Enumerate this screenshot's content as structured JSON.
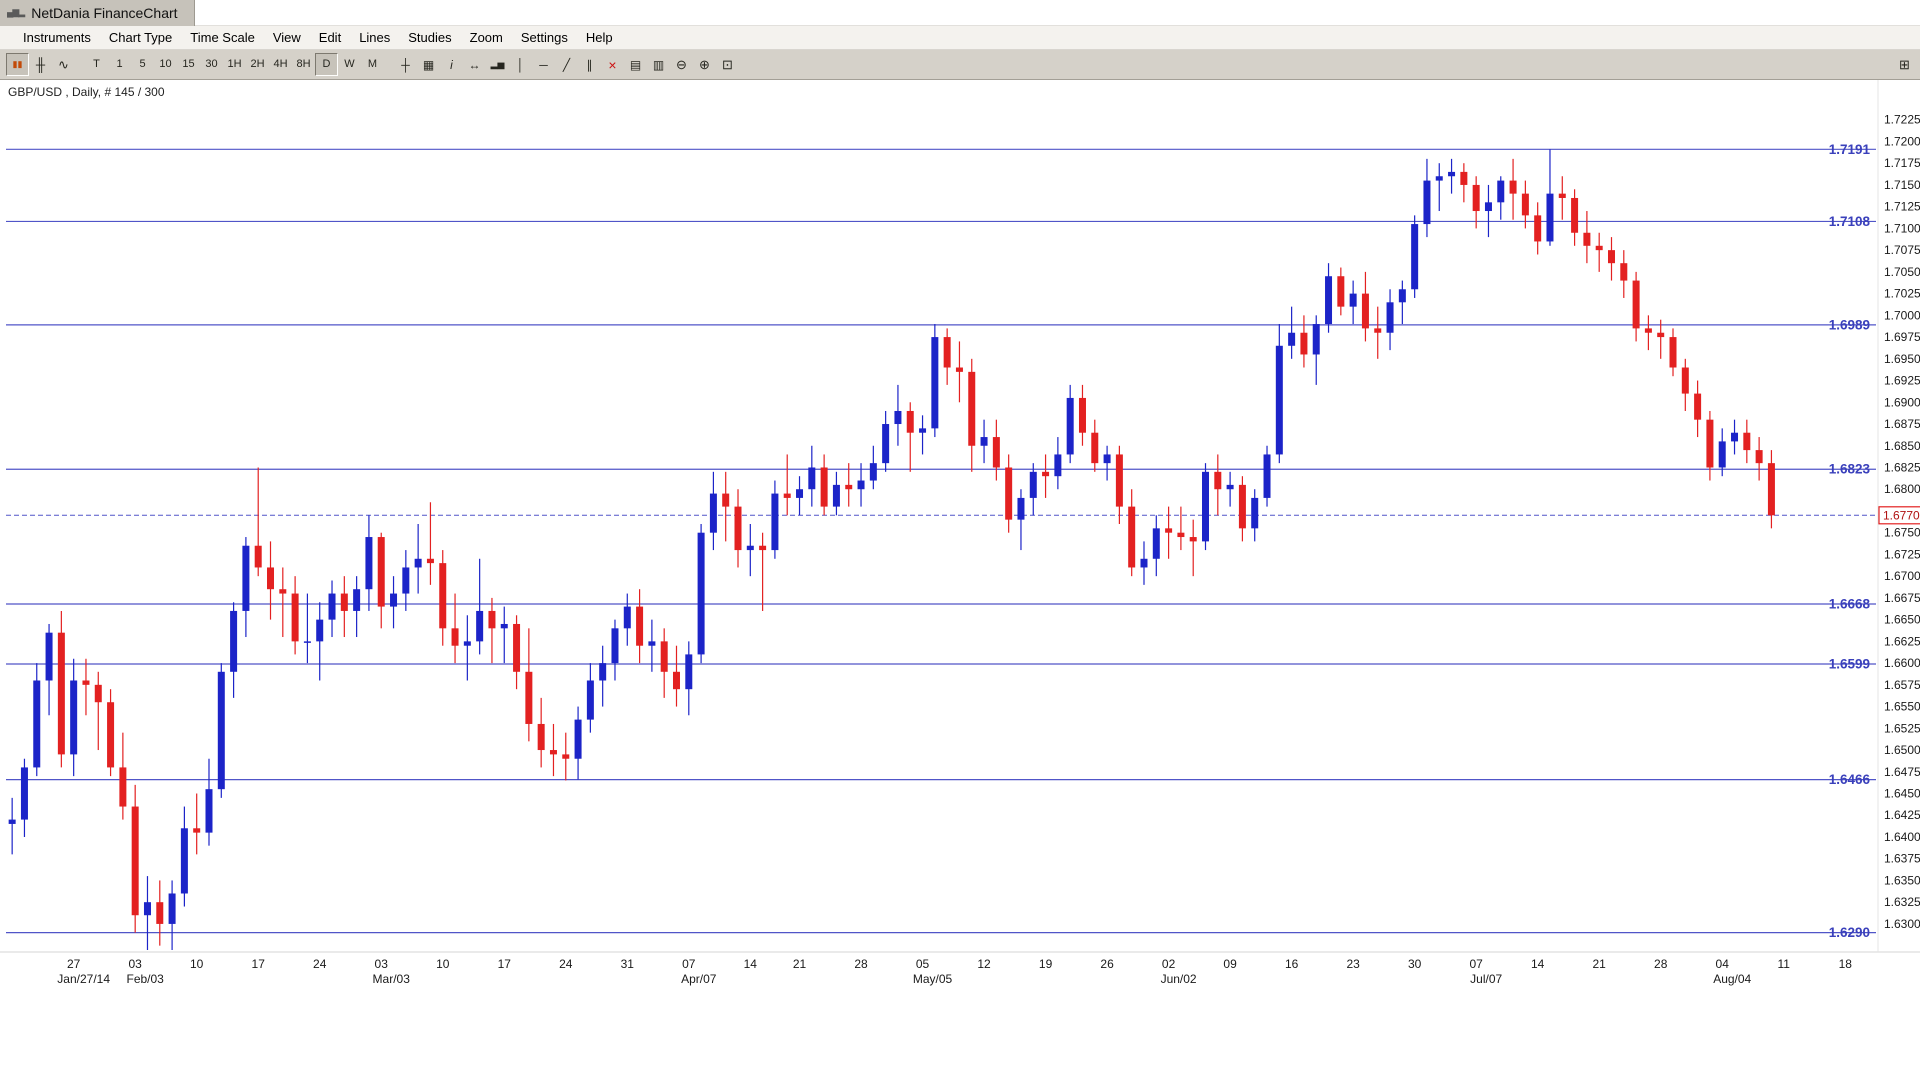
{
  "window": {
    "title": "NetDania FinanceChart",
    "app_icon_glyph": "▄▆▂"
  },
  "menu": {
    "items": [
      "Instruments",
      "Chart Type",
      "Time Scale",
      "View",
      "Edit",
      "Lines",
      "Studies",
      "Zoom",
      "Settings",
      "Help"
    ]
  },
  "toolbar": {
    "chart_type_buttons": [
      {
        "name": "candlestick-chart-button",
        "glyph": "▮▮",
        "size": 9,
        "color": "#c24a08",
        "pressed": true
      },
      {
        "name": "bar-chart-button",
        "glyph": "╫",
        "size": 13
      },
      {
        "name": "line-chart-button",
        "glyph": "∿",
        "size": 13
      }
    ],
    "timeframe_buttons": [
      {
        "name": "timeframe-tick-button",
        "label": "T"
      },
      {
        "name": "timeframe-1m-button",
        "label": "1"
      },
      {
        "name": "timeframe-5m-button",
        "label": "5"
      },
      {
        "name": "timeframe-10m-button",
        "label": "10"
      },
      {
        "name": "timeframe-15m-button",
        "label": "15"
      },
      {
        "name": "timeframe-30m-button",
        "label": "30"
      },
      {
        "name": "timeframe-1h-button",
        "label": "1H"
      },
      {
        "name": "timeframe-2h-button",
        "label": "2H"
      },
      {
        "name": "timeframe-4h-button",
        "label": "4H"
      },
      {
        "name": "timeframe-8h-button",
        "label": "8H"
      },
      {
        "name": "timeframe-daily-button",
        "label": "D",
        "pressed": true
      },
      {
        "name": "timeframe-weekly-button",
        "label": "W"
      },
      {
        "name": "timeframe-monthly-button",
        "label": "M"
      }
    ],
    "tool_buttons": [
      {
        "name": "crosshair-button",
        "glyph": "┼"
      },
      {
        "name": "grid-button",
        "glyph": "▦"
      },
      {
        "name": "info-tool-button",
        "glyph": "i",
        "italic": true
      },
      {
        "name": "scroll-horizontal-button",
        "glyph": "↔"
      },
      {
        "name": "volume-button",
        "glyph": "▂▅",
        "size": 9
      },
      {
        "name": "vertical-line-button",
        "glyph": "│"
      },
      {
        "name": "horizontal-line-button",
        "glyph": "─"
      },
      {
        "name": "trend-line-button",
        "glyph": "╱"
      },
      {
        "name": "parallel-lines-button",
        "glyph": "∥"
      },
      {
        "name": "delete-drawing-button",
        "glyph": "×",
        "color": "#cc1111",
        "size": 14
      },
      {
        "name": "print-button",
        "glyph": "▤"
      },
      {
        "name": "print-preview-button",
        "glyph": "▥"
      },
      {
        "name": "zoom-out-button",
        "glyph": "⊖",
        "size": 13
      },
      {
        "name": "zoom-in-button",
        "glyph": "⊕",
        "size": 13
      },
      {
        "name": "fit-chart-button",
        "glyph": "⊡",
        "size": 13
      }
    ],
    "window_button": {
      "name": "popout-window-button",
      "glyph": "⊞",
      "size": 13
    }
  },
  "chart": {
    "label": "GBP/USD , Daily, # 145 / 300"
  },
  "chart_data": {
    "type": "candlestick",
    "title": "GBP/USD, Daily",
    "instrument": "GBP/USD",
    "timeframe": "Daily",
    "bars_shown": "145 / 300",
    "y_axis": {
      "min": 1.63,
      "max": 1.7225,
      "step": 0.0025,
      "decimals": 4
    },
    "plot_range": {
      "top": 1.725,
      "bottom": 1.627
    },
    "total_slots": 152,
    "current_price": 1.677,
    "support_resistance_levels": [
      1.7191,
      1.7108,
      1.6989,
      1.6823,
      1.6668,
      1.6599,
      1.6466,
      1.629
    ],
    "colors": {
      "up": "#1c24c8",
      "down": "#e32121",
      "level_line": "#5055c8",
      "level_label": "#3a40bb",
      "current_line": "#5055c8",
      "current_label_border": "#e32121",
      "current_label_text": "#b01212",
      "axis_text": "#1a1a1a"
    },
    "x_ticks": [
      {
        "slot": 5,
        "label": "27",
        "sub": "Jan/27/14"
      },
      {
        "slot": 10,
        "label": "03",
        "sub": "Feb/03"
      },
      {
        "slot": 15,
        "label": "10"
      },
      {
        "slot": 20,
        "label": "17"
      },
      {
        "slot": 25,
        "label": "24"
      },
      {
        "slot": 30,
        "label": "03",
        "sub": "Mar/03"
      },
      {
        "slot": 35,
        "label": "10"
      },
      {
        "slot": 40,
        "label": "17"
      },
      {
        "slot": 45,
        "label": "24"
      },
      {
        "slot": 50,
        "label": "31"
      },
      {
        "slot": 55,
        "label": "07",
        "sub": "Apr/07"
      },
      {
        "slot": 60,
        "label": "14"
      },
      {
        "slot": 64,
        "label": "21"
      },
      {
        "slot": 69,
        "label": "28"
      },
      {
        "slot": 74,
        "label": "05",
        "sub": "May/05"
      },
      {
        "slot": 79,
        "label": "12"
      },
      {
        "slot": 84,
        "label": "19"
      },
      {
        "slot": 89,
        "label": "26"
      },
      {
        "slot": 94,
        "label": "02",
        "sub": "Jun/02"
      },
      {
        "slot": 99,
        "label": "09"
      },
      {
        "slot": 104,
        "label": "16"
      },
      {
        "slot": 109,
        "label": "23"
      },
      {
        "slot": 114,
        "label": "30"
      },
      {
        "slot": 119,
        "label": "07",
        "sub": "Jul/07"
      },
      {
        "slot": 124,
        "label": "14"
      },
      {
        "slot": 129,
        "label": "21"
      },
      {
        "slot": 134,
        "label": "28"
      },
      {
        "slot": 139,
        "label": "04",
        "sub": "Aug/04"
      },
      {
        "slot": 144,
        "label": "11"
      },
      {
        "slot": 149,
        "label": "18"
      }
    ],
    "candles": [
      [
        "01-20",
        1.6415,
        1.6445,
        1.638,
        1.642
      ],
      [
        "01-21",
        1.642,
        1.649,
        1.64,
        1.648
      ],
      [
        "01-22",
        1.648,
        1.66,
        1.647,
        1.658
      ],
      [
        "01-23",
        1.658,
        1.6645,
        1.654,
        1.6635
      ],
      [
        "01-24",
        1.6635,
        1.666,
        1.648,
        1.6495
      ],
      [
        "01-27",
        1.6495,
        1.6605,
        1.647,
        1.658
      ],
      [
        "01-28",
        1.658,
        1.6605,
        1.654,
        1.6575
      ],
      [
        "01-29",
        1.6575,
        1.659,
        1.65,
        1.6555
      ],
      [
        "01-30",
        1.6555,
        1.657,
        1.647,
        1.648
      ],
      [
        "01-31",
        1.648,
        1.652,
        1.642,
        1.6435
      ],
      [
        "02-03",
        1.6435,
        1.646,
        1.629,
        1.631
      ],
      [
        "02-04",
        1.631,
        1.6355,
        1.627,
        1.6325
      ],
      [
        "02-05",
        1.6325,
        1.635,
        1.6275,
        1.63
      ],
      [
        "02-06",
        1.63,
        1.635,
        1.627,
        1.6335
      ],
      [
        "02-07",
        1.6335,
        1.6435,
        1.632,
        1.641
      ],
      [
        "02-10",
        1.641,
        1.645,
        1.638,
        1.6405
      ],
      [
        "02-11",
        1.6405,
        1.649,
        1.639,
        1.6455
      ],
      [
        "02-12",
        1.6455,
        1.66,
        1.6445,
        1.659
      ],
      [
        "02-13",
        1.659,
        1.667,
        1.656,
        1.666
      ],
      [
        "02-14",
        1.666,
        1.6745,
        1.663,
        1.6735
      ],
      [
        "02-17",
        1.6735,
        1.6825,
        1.67,
        1.671
      ],
      [
        "02-18",
        1.671,
        1.674,
        1.665,
        1.6685
      ],
      [
        "02-19",
        1.6685,
        1.671,
        1.663,
        1.668
      ],
      [
        "02-20",
        1.668,
        1.67,
        1.661,
        1.6625
      ],
      [
        "02-21",
        1.6625,
        1.668,
        1.66,
        1.6625
      ],
      [
        "02-24",
        1.6625,
        1.667,
        1.658,
        1.665
      ],
      [
        "02-25",
        1.665,
        1.6695,
        1.663,
        1.668
      ],
      [
        "02-26",
        1.668,
        1.67,
        1.663,
        1.666
      ],
      [
        "02-27",
        1.666,
        1.67,
        1.663,
        1.6685
      ],
      [
        "02-28",
        1.6685,
        1.677,
        1.666,
        1.6745
      ],
      [
        "03-03",
        1.6745,
        1.675,
        1.664,
        1.6665
      ],
      [
        "03-04",
        1.6665,
        1.67,
        1.664,
        1.668
      ],
      [
        "03-05",
        1.668,
        1.673,
        1.666,
        1.671
      ],
      [
        "03-06",
        1.671,
        1.676,
        1.668,
        1.672
      ],
      [
        "03-07",
        1.672,
        1.6785,
        1.669,
        1.6715
      ],
      [
        "03-10",
        1.6715,
        1.673,
        1.662,
        1.664
      ],
      [
        "03-11",
        1.664,
        1.668,
        1.66,
        1.662
      ],
      [
        "03-12",
        1.662,
        1.6655,
        1.658,
        1.6625
      ],
      [
        "03-13",
        1.6625,
        1.672,
        1.661,
        1.666
      ],
      [
        "03-14",
        1.666,
        1.6675,
        1.66,
        1.664
      ],
      [
        "03-17",
        1.664,
        1.6665,
        1.66,
        1.6645
      ],
      [
        "03-18",
        1.6645,
        1.6655,
        1.657,
        1.659
      ],
      [
        "03-19",
        1.659,
        1.664,
        1.651,
        1.653
      ],
      [
        "03-20",
        1.653,
        1.656,
        1.648,
        1.65
      ],
      [
        "03-21",
        1.65,
        1.653,
        1.647,
        1.6495
      ],
      [
        "03-24",
        1.6495,
        1.652,
        1.6465,
        1.649
      ],
      [
        "03-25",
        1.649,
        1.655,
        1.6466,
        1.6535
      ],
      [
        "03-26",
        1.6535,
        1.66,
        1.652,
        1.658
      ],
      [
        "03-27",
        1.658,
        1.662,
        1.655,
        1.66
      ],
      [
        "03-28",
        1.66,
        1.665,
        1.658,
        1.664
      ],
      [
        "03-31",
        1.664,
        1.668,
        1.662,
        1.6665
      ],
      [
        "04-01",
        1.6665,
        1.6685,
        1.66,
        1.662
      ],
      [
        "04-02",
        1.662,
        1.665,
        1.659,
        1.6625
      ],
      [
        "04-03",
        1.6625,
        1.664,
        1.656,
        1.659
      ],
      [
        "04-04",
        1.659,
        1.662,
        1.655,
        1.657
      ],
      [
        "04-07",
        1.657,
        1.6625,
        1.654,
        1.661
      ],
      [
        "04-08",
        1.661,
        1.676,
        1.66,
        1.675
      ],
      [
        "04-09",
        1.675,
        1.682,
        1.673,
        1.6795
      ],
      [
        "04-10",
        1.6795,
        1.682,
        1.674,
        1.678
      ],
      [
        "04-11",
        1.678,
        1.68,
        1.671,
        1.673
      ],
      [
        "04-14",
        1.673,
        1.676,
        1.67,
        1.6735
      ],
      [
        "04-15",
        1.6735,
        1.675,
        1.666,
        1.673
      ],
      [
        "04-16",
        1.673,
        1.681,
        1.672,
        1.6795
      ],
      [
        "04-17",
        1.6795,
        1.684,
        1.677,
        1.679
      ],
      [
        "04-21",
        1.679,
        1.6815,
        1.677,
        1.68
      ],
      [
        "04-22",
        1.68,
        1.685,
        1.678,
        1.6825
      ],
      [
        "04-23",
        1.6825,
        1.684,
        1.677,
        1.678
      ],
      [
        "04-24",
        1.678,
        1.682,
        1.677,
        1.6805
      ],
      [
        "04-25",
        1.6805,
        1.683,
        1.678,
        1.68
      ],
      [
        "04-28",
        1.68,
        1.683,
        1.678,
        1.681
      ],
      [
        "04-29",
        1.681,
        1.685,
        1.68,
        1.683
      ],
      [
        "04-30",
        1.683,
        1.689,
        1.682,
        1.6875
      ],
      [
        "05-01",
        1.6875,
        1.692,
        1.685,
        1.689
      ],
      [
        "05-02",
        1.689,
        1.69,
        1.682,
        1.6865
      ],
      [
        "05-05",
        1.6865,
        1.6885,
        1.684,
        1.687
      ],
      [
        "05-06",
        1.687,
        1.699,
        1.686,
        1.6975
      ],
      [
        "05-07",
        1.6975,
        1.6985,
        1.692,
        1.694
      ],
      [
        "05-08",
        1.694,
        1.697,
        1.69,
        1.6935
      ],
      [
        "05-09",
        1.6935,
        1.695,
        1.682,
        1.685
      ],
      [
        "05-12",
        1.685,
        1.688,
        1.683,
        1.686
      ],
      [
        "05-13",
        1.686,
        1.688,
        1.681,
        1.6825
      ],
      [
        "05-14",
        1.6825,
        1.684,
        1.675,
        1.6765
      ],
      [
        "05-15",
        1.6765,
        1.68,
        1.673,
        1.679
      ],
      [
        "05-16",
        1.679,
        1.683,
        1.677,
        1.682
      ],
      [
        "05-19",
        1.682,
        1.684,
        1.679,
        1.6815
      ],
      [
        "05-20",
        1.6815,
        1.686,
        1.68,
        1.684
      ],
      [
        "05-21",
        1.684,
        1.692,
        1.683,
        1.6905
      ],
      [
        "05-22",
        1.6905,
        1.692,
        1.685,
        1.6865
      ],
      [
        "05-23",
        1.6865,
        1.688,
        1.682,
        1.683
      ],
      [
        "05-26",
        1.683,
        1.685,
        1.681,
        1.684
      ],
      [
        "05-27",
        1.684,
        1.685,
        1.676,
        1.678
      ],
      [
        "05-28",
        1.678,
        1.68,
        1.67,
        1.671
      ],
      [
        "05-29",
        1.671,
        1.674,
        1.669,
        1.672
      ],
      [
        "05-30",
        1.672,
        1.677,
        1.67,
        1.6755
      ],
      [
        "06-02",
        1.6755,
        1.678,
        1.672,
        1.675
      ],
      [
        "06-03",
        1.675,
        1.678,
        1.673,
        1.6745
      ],
      [
        "06-04",
        1.6745,
        1.6765,
        1.67,
        1.674
      ],
      [
        "06-05",
        1.674,
        1.683,
        1.673,
        1.682
      ],
      [
        "06-06",
        1.682,
        1.684,
        1.677,
        1.68
      ],
      [
        "06-09",
        1.68,
        1.682,
        1.678,
        1.6805
      ],
      [
        "06-10",
        1.6805,
        1.6815,
        1.674,
        1.6755
      ],
      [
        "06-11",
        1.6755,
        1.68,
        1.674,
        1.679
      ],
      [
        "06-12",
        1.679,
        1.685,
        1.678,
        1.684
      ],
      [
        "06-13",
        1.684,
        1.699,
        1.683,
        1.6965
      ],
      [
        "06-16",
        1.6965,
        1.701,
        1.695,
        1.698
      ],
      [
        "06-17",
        1.698,
        1.7,
        1.694,
        1.6955
      ],
      [
        "06-18",
        1.6955,
        1.7,
        1.692,
        1.699
      ],
      [
        "06-19",
        1.699,
        1.706,
        1.698,
        1.7045
      ],
      [
        "06-20",
        1.7045,
        1.7055,
        1.7,
        1.701
      ],
      [
        "06-23",
        1.701,
        1.704,
        1.699,
        1.7025
      ],
      [
        "06-24",
        1.7025,
        1.705,
        1.697,
        1.6985
      ],
      [
        "06-25",
        1.6985,
        1.701,
        1.695,
        1.698
      ],
      [
        "06-26",
        1.698,
        1.703,
        1.696,
        1.7015
      ],
      [
        "06-27",
        1.7015,
        1.704,
        1.699,
        1.703
      ],
      [
        "06-30",
        1.703,
        1.7115,
        1.702,
        1.7105
      ],
      [
        "07-01",
        1.7105,
        1.718,
        1.709,
        1.7155
      ],
      [
        "07-02",
        1.7155,
        1.7175,
        1.712,
        1.716
      ],
      [
        "07-03",
        1.716,
        1.718,
        1.714,
        1.7165
      ],
      [
        "07-04",
        1.7165,
        1.7175,
        1.713,
        1.715
      ],
      [
        "07-07",
        1.715,
        1.716,
        1.71,
        1.712
      ],
      [
        "07-08",
        1.712,
        1.715,
        1.709,
        1.713
      ],
      [
        "07-09",
        1.713,
        1.716,
        1.711,
        1.7155
      ],
      [
        "07-10",
        1.7155,
        1.718,
        1.711,
        1.714
      ],
      [
        "07-11",
        1.714,
        1.7155,
        1.71,
        1.7115
      ],
      [
        "07-14",
        1.7115,
        1.713,
        1.707,
        1.7085
      ],
      [
        "07-15",
        1.7085,
        1.7191,
        1.708,
        1.714
      ],
      [
        "07-16",
        1.714,
        1.716,
        1.711,
        1.7135
      ],
      [
        "07-17",
        1.7135,
        1.7145,
        1.708,
        1.7095
      ],
      [
        "07-18",
        1.7095,
        1.712,
        1.706,
        1.708
      ],
      [
        "07-21",
        1.708,
        1.7095,
        1.705,
        1.7075
      ],
      [
        "07-22",
        1.7075,
        1.709,
        1.704,
        1.706
      ],
      [
        "07-23",
        1.706,
        1.7075,
        1.702,
        1.704
      ],
      [
        "07-24",
        1.704,
        1.705,
        1.697,
        1.6985
      ],
      [
        "07-25",
        1.6985,
        1.7,
        1.696,
        1.698
      ],
      [
        "07-28",
        1.698,
        1.6995,
        1.695,
        1.6975
      ],
      [
        "07-29",
        1.6975,
        1.6985,
        1.693,
        1.694
      ],
      [
        "07-30",
        1.694,
        1.695,
        1.689,
        1.691
      ],
      [
        "07-31",
        1.691,
        1.6925,
        1.686,
        1.688
      ],
      [
        "08-01",
        1.688,
        1.689,
        1.681,
        1.6825
      ],
      [
        "08-04",
        1.6825,
        1.687,
        1.6815,
        1.6855
      ],
      [
        "08-05",
        1.6855,
        1.688,
        1.684,
        1.6865
      ],
      [
        "08-06",
        1.6865,
        1.688,
        1.683,
        1.6845
      ],
      [
        "08-07",
        1.6845,
        1.686,
        1.681,
        1.683
      ],
      [
        "08-08",
        1.683,
        1.6845,
        1.6755,
        1.677
      ]
    ]
  }
}
